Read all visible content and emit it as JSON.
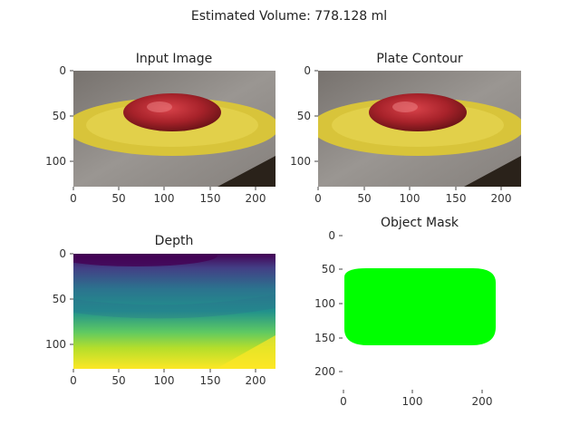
{
  "figure": {
    "suptitle": "Estimated Volume: 778.128 ml"
  },
  "panels": [
    {
      "id": "input-image",
      "title": "Input Image",
      "content": "photo of a red apple on a yellow plate on a grey table",
      "xticks": [
        "0",
        "50",
        "100",
        "150",
        "200"
      ],
      "yticks": [
        "0",
        "50",
        "100"
      ]
    },
    {
      "id": "plate-contour",
      "title": "Plate Contour",
      "content": "same photo (plate contour overlay)",
      "xticks": [
        "0",
        "50",
        "100",
        "150",
        "200"
      ],
      "yticks": [
        "0",
        "50",
        "100"
      ]
    },
    {
      "id": "depth",
      "title": "Depth",
      "content": "viridis depth map, dark purple at top to yellow at bottom",
      "xticks": [
        "0",
        "50",
        "100",
        "150",
        "200"
      ],
      "yticks": [
        "0",
        "50",
        "100"
      ]
    },
    {
      "id": "object-mask",
      "title": "Object Mask",
      "content": "green elliptical object mask on white background",
      "xticks": [
        "0",
        "100",
        "200"
      ],
      "yticks": [
        "0",
        "50",
        "100",
        "150",
        "200"
      ]
    }
  ],
  "colors": {
    "plate": "#d8c43a",
    "apple": "#b3262c",
    "table": "#8e8a86",
    "mask": "#00ff00",
    "viridis_dark": "#440154",
    "viridis_yellow": "#fde725"
  }
}
